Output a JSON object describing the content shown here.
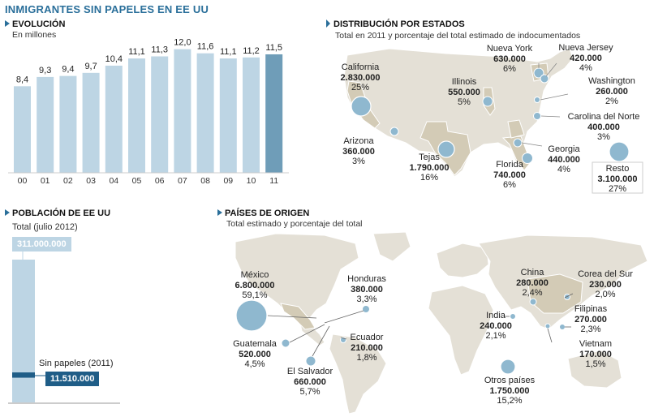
{
  "title": "INMIGRANTES SIN PAPELES EN EE UU",
  "evolucion": {
    "title": "EVOLUCIÓN",
    "subtitle": "En millones"
  },
  "chart_data": {
    "type": "bar",
    "categories": [
      "00",
      "01",
      "02",
      "03",
      "04",
      "05",
      "06",
      "07",
      "08",
      "09",
      "10",
      "11"
    ],
    "values": [
      8.4,
      9.3,
      9.4,
      9.7,
      10.4,
      11.1,
      11.3,
      12.0,
      11.6,
      11.1,
      11.2,
      11.5
    ],
    "value_labels": [
      "8,4",
      "9,3",
      "9,4",
      "9,7",
      "10,4",
      "11,1",
      "11,3",
      "12,0",
      "11,6",
      "11,1",
      "11,2",
      "11,5"
    ],
    "ylim": [
      0,
      12.6
    ],
    "grid": false,
    "colors": {
      "bar": "#bdd5e4",
      "highlight": "#6f9db8"
    },
    "highlight_index": 11
  },
  "estados": {
    "title": "DISTRIBUCIÓN POR ESTADOS",
    "subtitle": "Total en 2011 y porcentaje del total estimado de indocumentados",
    "items": [
      {
        "name": "California",
        "value": "2.830.000",
        "pct": "25%"
      },
      {
        "name": "Nueva York",
        "value": "630.000",
        "pct": "6%"
      },
      {
        "name": "Nueva Jersey",
        "value": "420.000",
        "pct": "4%"
      },
      {
        "name": "Illinois",
        "value": "550.000",
        "pct": "5%"
      },
      {
        "name": "Washington",
        "value": "260.000",
        "pct": "2%"
      },
      {
        "name": "Carolina del Norte",
        "value": "400.000",
        "pct": "3%"
      },
      {
        "name": "Arizona",
        "value": "360.000",
        "pct": "3%"
      },
      {
        "name": "Tejas",
        "value": "1.790.000",
        "pct": "16%"
      },
      {
        "name": "Florida",
        "value": "740.000",
        "pct": "6%"
      },
      {
        "name": "Georgia",
        "value": "440.000",
        "pct": "4%"
      },
      {
        "name": "Resto",
        "value": "3.100.000",
        "pct": "27%"
      }
    ]
  },
  "poblacion": {
    "title": "POBLACIÓN DE EE UU",
    "total_label": "Total (julio 2012)",
    "total_value": "311.000.000",
    "sin_label": "Sin papeles (2011)",
    "sin_value": "11.510.000",
    "total": 311000000,
    "sin": 11510000
  },
  "paises": {
    "title": "PAÍSES DE ORIGEN",
    "subtitle": "Total estimado y porcentaje del total",
    "items": [
      {
        "name": "México",
        "value": "6.800.000",
        "pct": "59,1%"
      },
      {
        "name": "Honduras",
        "value": "380.000",
        "pct": "3,3%"
      },
      {
        "name": "Guatemala",
        "value": "520.000",
        "pct": "4,5%"
      },
      {
        "name": "Ecuador",
        "value": "210.000",
        "pct": "1,8%"
      },
      {
        "name": "El Salvador",
        "value": "660.000",
        "pct": "5,7%"
      },
      {
        "name": "China",
        "value": "280.000",
        "pct": "2,4%"
      },
      {
        "name": "Corea del Sur",
        "value": "230.000",
        "pct": "2,0%"
      },
      {
        "name": "India",
        "value": "240.000",
        "pct": "2,1%"
      },
      {
        "name": "Filipinas",
        "value": "270.000",
        "pct": "2,3%"
      },
      {
        "name": "Vietnam",
        "value": "170.000",
        "pct": "1,5%"
      },
      {
        "name": "Otros países",
        "value": "1.750.000",
        "pct": "15,2%"
      }
    ]
  },
  "colors": {
    "accent": "#2a6f9a",
    "bubble": "#8fb8cf",
    "land": "#e4e0d6",
    "land_highlight": "#d3cbb6",
    "dark_bar": "#1f5d87"
  }
}
